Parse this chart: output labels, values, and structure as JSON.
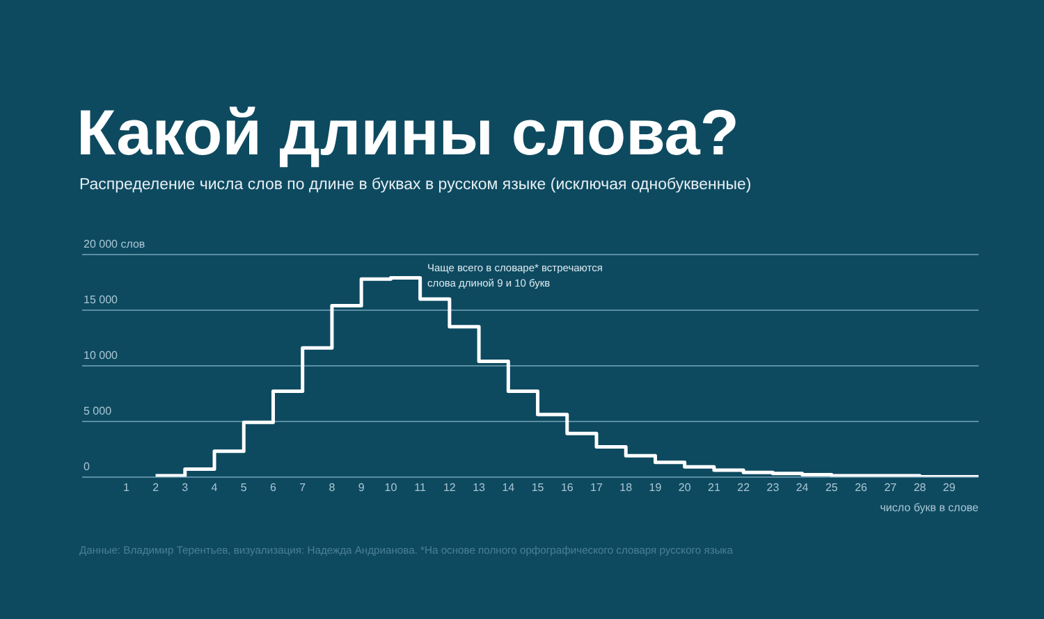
{
  "chart_data": {
    "type": "histogram",
    "title": "Какой длины слова?",
    "subtitle": "Распределение числа слов по длине в буквах в русском языке (исключая однобуквенные)",
    "xlabel": "число букв в слове",
    "bins": [
      2,
      3,
      4,
      5,
      6,
      7,
      8,
      9,
      10,
      11,
      12,
      13,
      14,
      15,
      16,
      17,
      18,
      19,
      20,
      21,
      22,
      23,
      24,
      25,
      26,
      27,
      28,
      29,
      30
    ],
    "values": [
      100,
      700,
      2300,
      4900,
      7700,
      11600,
      15400,
      17800,
      17900,
      16000,
      13500,
      10400,
      7700,
      5600,
      3900,
      2700,
      1900,
      1300,
      900,
      600,
      400,
      300,
      200,
      100,
      100,
      100,
      0,
      0
    ],
    "color": "#ffffff",
    "xlim": [
      -0.5,
      30
    ],
    "xticks": [
      1,
      2,
      3,
      4,
      5,
      6,
      7,
      8,
      9,
      10,
      11,
      12,
      13,
      14,
      15,
      16,
      17,
      18,
      19,
      20,
      21,
      22,
      23,
      24,
      25,
      26,
      27,
      28,
      29
    ],
    "ylim": [
      0,
      20000
    ],
    "yticks": [
      0,
      {
        "value": 5000,
        "label": "5 000"
      },
      {
        "value": 10000,
        "label": "10 000"
      },
      {
        "value": 15000,
        "label": "15 000"
      },
      {
        "value": 20000,
        "label": "20 000 слов"
      }
    ],
    "grid": "y",
    "annotations": [
      "Чаще всего в словаре* встречаются слова длиной 9 и 10 букв",
      "Данные: Владимир Терентьев, визуализация: Надежда Андрианова. *На основе полного орфографического словаря русского языка"
    ]
  }
}
